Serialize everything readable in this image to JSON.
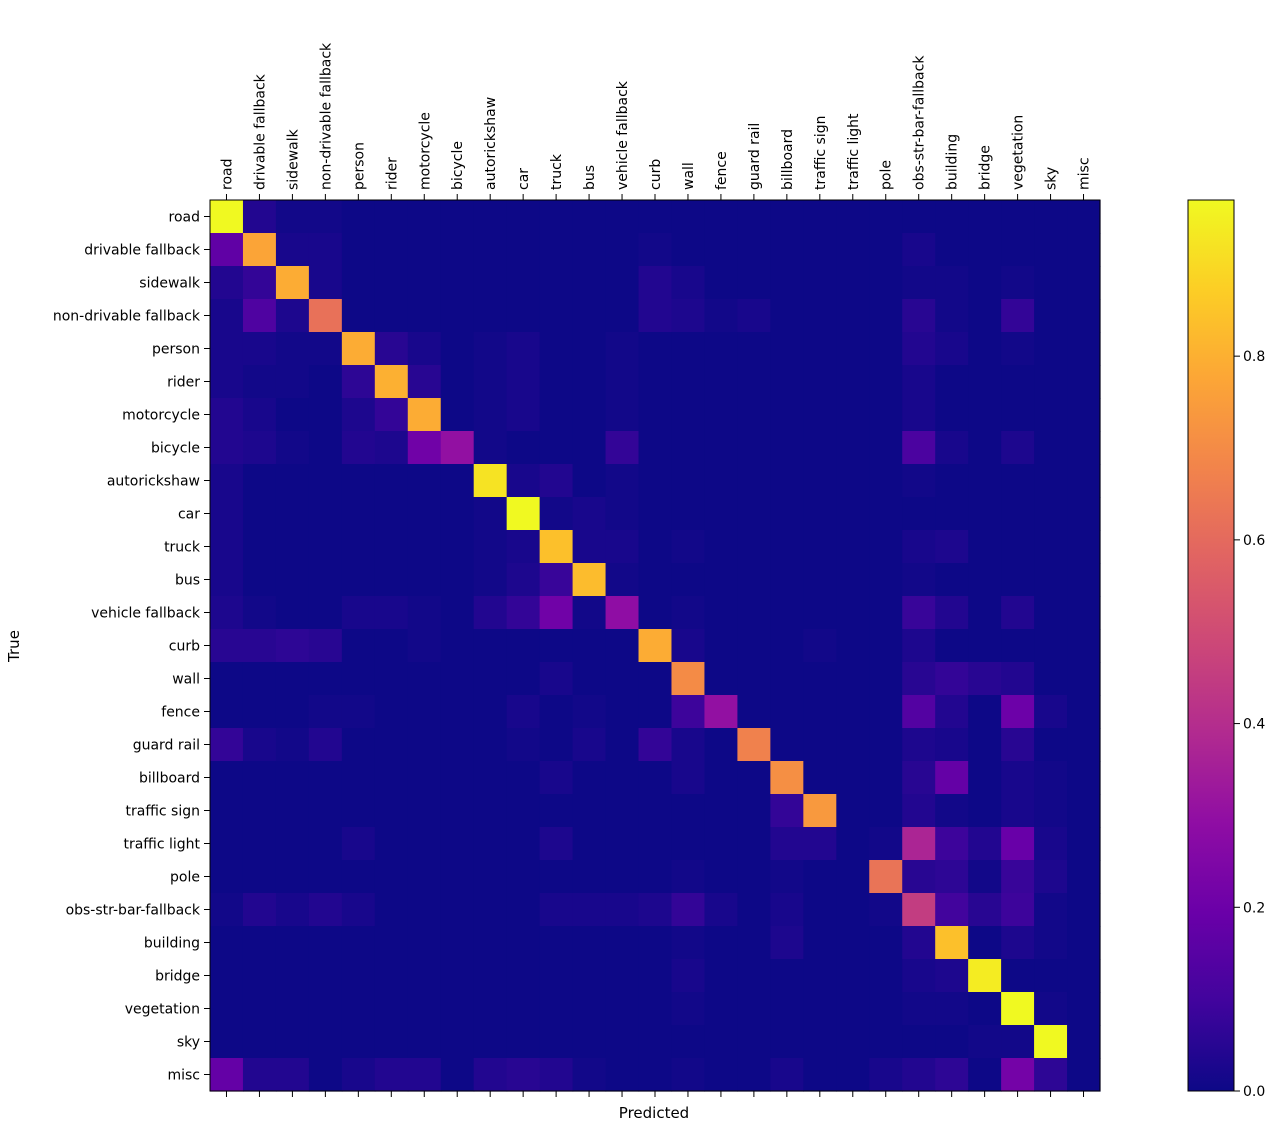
{
  "chart_data": {
    "type": "heatmap",
    "title": "",
    "xlabel": "Predicted",
    "ylabel": "True",
    "labels": [
      "road",
      "drivable fallback",
      "sidewalk",
      "non-drivable fallback",
      "person",
      "rider",
      "motorcycle",
      "bicycle",
      "autorickshaw",
      "car",
      "truck",
      "bus",
      "vehicle fallback",
      "curb",
      "wall",
      "fence",
      "guard rail",
      "billboard",
      "traffic sign",
      "traffic light",
      "pole",
      "obs-str-bar-fallback",
      "building",
      "bridge",
      "vegetation",
      "sky",
      "misc"
    ],
    "colorbar": {
      "ticks": [
        0.0,
        0.2,
        0.4,
        0.6,
        0.8
      ],
      "tick_labels": [
        "0.0",
        "0.2",
        "0.4",
        "0.6",
        "0.8"
      ],
      "range": [
        0,
        0.97
      ],
      "colormap": "plasma"
    },
    "matrix": [
      [
        0.97,
        0.04,
        0.01,
        0.01,
        0,
        0,
        0,
        0,
        0,
        0,
        0,
        0,
        0,
        0,
        0,
        0,
        0,
        0,
        0,
        0,
        0,
        0,
        0,
        0,
        0,
        0,
        0
      ],
      [
        0.17,
        0.77,
        0.02,
        0.02,
        0,
        0,
        0,
        0,
        0,
        0,
        0,
        0,
        0,
        0.01,
        0,
        0,
        0,
        0,
        0,
        0,
        0,
        0.02,
        0,
        0,
        0,
        0,
        0
      ],
      [
        0.04,
        0.07,
        0.79,
        0.02,
        0,
        0,
        0,
        0,
        0,
        0,
        0,
        0,
        0,
        0.04,
        0.02,
        0,
        0,
        0,
        0,
        0,
        0,
        0.01,
        0.01,
        0,
        0.01,
        0,
        0
      ],
      [
        0.02,
        0.13,
        0.03,
        0.62,
        0,
        0,
        0,
        0,
        0,
        0,
        0,
        0,
        0,
        0.04,
        0.03,
        0.01,
        0.02,
        0,
        0,
        0,
        0,
        0.05,
        0.01,
        0,
        0.07,
        0,
        0
      ],
      [
        0.02,
        0.02,
        0.01,
        0.01,
        0.79,
        0.05,
        0.02,
        0,
        0.01,
        0.02,
        0,
        0,
        0.01,
        0,
        0,
        0,
        0,
        0,
        0,
        0,
        0,
        0.04,
        0.02,
        0,
        0.01,
        0,
        0
      ],
      [
        0.02,
        0.01,
        0.01,
        0,
        0.06,
        0.8,
        0.05,
        0,
        0.01,
        0.02,
        0,
        0,
        0.01,
        0,
        0,
        0,
        0,
        0,
        0,
        0,
        0,
        0.02,
        0,
        0,
        0,
        0,
        0
      ],
      [
        0.04,
        0.02,
        0,
        0,
        0.03,
        0.07,
        0.79,
        0,
        0.01,
        0.02,
        0,
        0,
        0.01,
        0,
        0,
        0,
        0,
        0,
        0,
        0,
        0,
        0.02,
        0,
        0,
        0,
        0,
        0
      ],
      [
        0.04,
        0.03,
        0.01,
        0,
        0.04,
        0.03,
        0.21,
        0.3,
        0.01,
        0,
        0,
        0,
        0.07,
        0,
        0,
        0,
        0,
        0,
        0,
        0,
        0,
        0.12,
        0.02,
        0,
        0.03,
        0,
        0
      ],
      [
        0.02,
        0,
        0,
        0,
        0,
        0,
        0,
        0,
        0.92,
        0.02,
        0.04,
        0,
        0.01,
        0,
        0,
        0,
        0,
        0,
        0,
        0,
        0,
        0.01,
        0,
        0,
        0,
        0,
        0
      ],
      [
        0.02,
        0,
        0,
        0,
        0,
        0,
        0,
        0,
        0.01,
        0.97,
        0.01,
        0.02,
        0.01,
        0,
        0,
        0,
        0,
        0,
        0,
        0,
        0,
        0,
        0,
        0,
        0,
        0,
        0
      ],
      [
        0.02,
        0,
        0,
        0,
        0,
        0,
        0,
        0,
        0.01,
        0.02,
        0.84,
        0.02,
        0.02,
        0,
        0.01,
        0,
        0,
        0,
        0,
        0,
        0,
        0.02,
        0.03,
        0,
        0,
        0,
        0
      ],
      [
        0.02,
        0,
        0,
        0,
        0,
        0,
        0,
        0,
        0.01,
        0.03,
        0.08,
        0.83,
        0.01,
        0,
        0,
        0,
        0,
        0,
        0,
        0,
        0,
        0.01,
        0,
        0,
        0,
        0,
        0
      ],
      [
        0.03,
        0.01,
        0,
        0,
        0.02,
        0.02,
        0.01,
        0,
        0.04,
        0.07,
        0.21,
        0.01,
        0.29,
        0,
        0.01,
        0,
        0,
        0,
        0,
        0,
        0,
        0.08,
        0.04,
        0,
        0.04,
        0,
        0
      ],
      [
        0.05,
        0.05,
        0.06,
        0.05,
        0,
        0,
        0.01,
        0,
        0,
        0,
        0,
        0,
        0,
        0.79,
        0.02,
        0,
        0,
        0,
        0.01,
        0,
        0,
        0.03,
        0,
        0,
        0,
        0,
        0
      ],
      [
        0,
        0,
        0,
        0,
        0,
        0,
        0,
        0,
        0,
        0,
        0.02,
        0,
        0,
        0,
        0.7,
        0,
        0,
        0,
        0,
        0,
        0,
        0.05,
        0.07,
        0.05,
        0.04,
        0,
        0
      ],
      [
        0,
        0,
        0,
        0.01,
        0.01,
        0,
        0,
        0,
        0,
        0.02,
        0,
        0.01,
        0,
        0,
        0.09,
        0.3,
        0,
        0,
        0,
        0,
        0,
        0.14,
        0.04,
        0,
        0.2,
        0.02,
        0
      ],
      [
        0.07,
        0.02,
        0.01,
        0.04,
        0,
        0,
        0,
        0,
        0,
        0.01,
        0,
        0.02,
        0,
        0.07,
        0.02,
        0,
        0.67,
        0,
        0,
        0,
        0,
        0.03,
        0.02,
        0,
        0.05,
        0,
        0
      ],
      [
        0,
        0,
        0,
        0,
        0,
        0,
        0,
        0,
        0,
        0,
        0.02,
        0,
        0,
        0,
        0.02,
        0,
        0,
        0.71,
        0,
        0,
        0,
        0.05,
        0.18,
        0,
        0.02,
        0.01,
        0
      ],
      [
        0,
        0,
        0,
        0,
        0,
        0,
        0,
        0,
        0,
        0,
        0,
        0,
        0,
        0,
        0,
        0,
        0,
        0.07,
        0.74,
        0,
        0,
        0.04,
        0.01,
        0,
        0.02,
        0.01,
        0
      ],
      [
        0,
        0,
        0,
        0,
        0.02,
        0,
        0,
        0,
        0,
        0,
        0.03,
        0,
        0,
        0,
        0,
        0,
        0,
        0.04,
        0.04,
        0,
        0.01,
        0.37,
        0.09,
        0.04,
        0.19,
        0.02,
        0
      ],
      [
        0,
        0,
        0,
        0,
        0,
        0,
        0,
        0,
        0,
        0,
        0,
        0,
        0,
        0,
        0.01,
        0,
        0,
        0.01,
        0,
        0,
        0.63,
        0.05,
        0.06,
        0.01,
        0.08,
        0.03,
        0
      ],
      [
        0.01,
        0.04,
        0.02,
        0.04,
        0.02,
        0,
        0,
        0,
        0,
        0,
        0.02,
        0.02,
        0.02,
        0.03,
        0.07,
        0.02,
        0,
        0.02,
        0,
        0,
        0.01,
        0.45,
        0.1,
        0.05,
        0.09,
        0.01,
        0
      ],
      [
        0,
        0,
        0,
        0,
        0,
        0,
        0,
        0,
        0,
        0,
        0,
        0,
        0,
        0,
        0.01,
        0,
        0,
        0.03,
        0,
        0,
        0,
        0.04,
        0.84,
        0,
        0.03,
        0.01,
        0
      ],
      [
        0,
        0,
        0,
        0,
        0,
        0,
        0,
        0,
        0,
        0,
        0,
        0,
        0,
        0,
        0.02,
        0,
        0,
        0,
        0,
        0,
        0,
        0.02,
        0.03,
        0.94,
        0,
        0,
        0
      ],
      [
        0,
        0,
        0,
        0,
        0,
        0,
        0,
        0,
        0,
        0,
        0,
        0,
        0,
        0,
        0.01,
        0,
        0,
        0,
        0,
        0,
        0,
        0.01,
        0.01,
        0,
        0.97,
        0.01,
        0
      ],
      [
        0,
        0,
        0,
        0,
        0,
        0,
        0,
        0,
        0,
        0,
        0,
        0,
        0,
        0,
        0,
        0,
        0,
        0,
        0,
        0,
        0,
        0,
        0,
        0.01,
        0.01,
        0.97,
        0
      ],
      [
        0.18,
        0.04,
        0.04,
        0,
        0.02,
        0.04,
        0.04,
        0,
        0.04,
        0.05,
        0.04,
        0.01,
        0,
        0,
        0.01,
        0,
        0,
        0.02,
        0,
        0,
        0.02,
        0.04,
        0.06,
        0,
        0.22,
        0.06,
        0
      ]
    ]
  }
}
